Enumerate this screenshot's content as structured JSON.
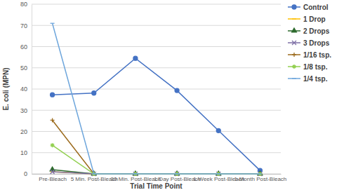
{
  "chart_data": {
    "type": "line",
    "x_label": "Trial Time Point",
    "y_label": "E. coli (MPN)",
    "categories": [
      "Pre-Bleach",
      "5 Min. Post-Bleach",
      "30 Min. Post-Bleach",
      "1-Day Post-Bleach",
      "1-Week Post-Bleach",
      "1-Month Post-Bleach"
    ],
    "series": [
      {
        "name": "Control",
        "color": "#4472c4",
        "marker": "circle",
        "values": [
          37.3,
          38.1,
          54.5,
          39.3,
          20.4,
          1.6
        ]
      },
      {
        "name": "1 Drop",
        "color": "#ffc000",
        "marker": "dash",
        "values": [
          1,
          0,
          0,
          0,
          0,
          0
        ]
      },
      {
        "name": "2 Drops",
        "color": "#2e6b2e",
        "marker": "triangle",
        "values": [
          2,
          0,
          0,
          0,
          0,
          0
        ]
      },
      {
        "name": "3 Drops",
        "color": "#7e6fa6",
        "marker": "x",
        "values": [
          1,
          0,
          0,
          0,
          0,
          0
        ]
      },
      {
        "name": "1/16 tsp.",
        "color": "#9c6b1d",
        "marker": "plus",
        "values": [
          25.3,
          0,
          0,
          0,
          0,
          0
        ]
      },
      {
        "name": "1/8 tsp.",
        "color": "#92d050",
        "marker": "asterisk",
        "values": [
          13.5,
          0,
          0,
          0,
          0,
          0
        ]
      },
      {
        "name": "1/4 tsp.",
        "color": "#6ea6dc",
        "marker": "dash",
        "values": [
          71,
          0,
          0,
          0,
          0,
          0
        ]
      }
    ],
    "ylim": [
      0,
      80
    ],
    "yticks": [
      0,
      10,
      20,
      30,
      40,
      50,
      60,
      70,
      80
    ],
    "grid": true,
    "legend": "right"
  }
}
